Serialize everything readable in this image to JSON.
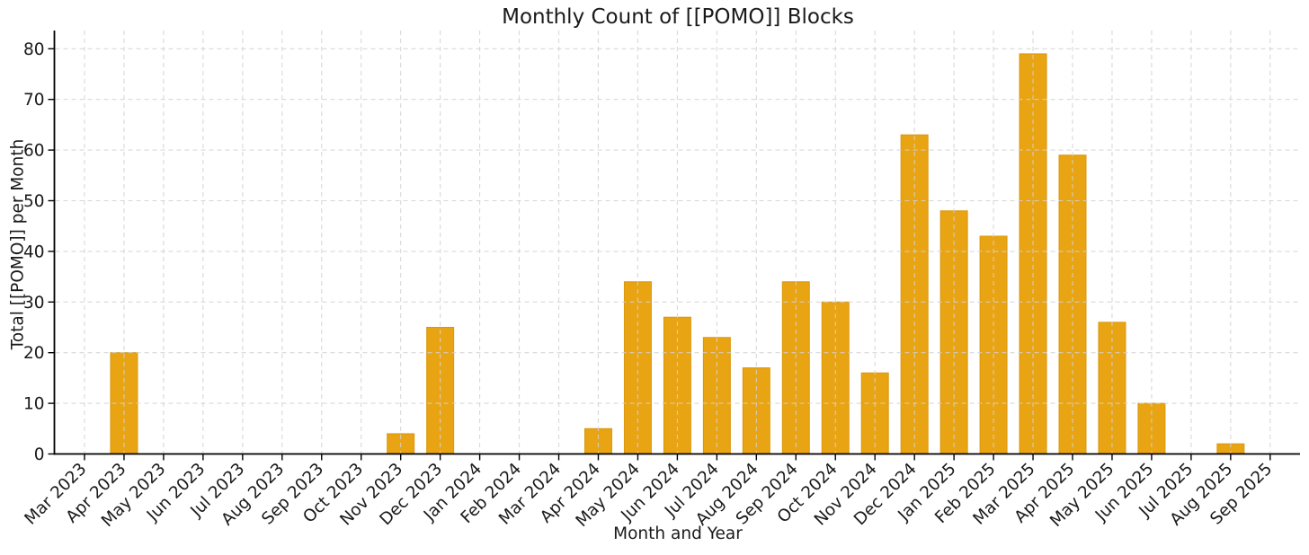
{
  "chart_data": {
    "type": "bar",
    "title": "Monthly Count of [[POMO]] Blocks",
    "xlabel": "Month and Year",
    "ylabel": "Total [[POMO]] per Month",
    "categories": [
      "Mar 2023",
      "Apr 2023",
      "May 2023",
      "Jun 2023",
      "Jul 2023",
      "Aug 2023",
      "Sep 2023",
      "Oct 2023",
      "Nov 2023",
      "Dec 2023",
      "Jan 2024",
      "Feb 2024",
      "Mar 2024",
      "Apr 2024",
      "May 2024",
      "Jun 2024",
      "Jul 2024",
      "Aug 2024",
      "Sep 2024",
      "Oct 2024",
      "Nov 2024",
      "Dec 2024",
      "Jan 2025",
      "Feb 2025",
      "Mar 2025",
      "Apr 2025",
      "May 2025",
      "Jun 2025",
      "Jul 2025",
      "Aug 2025",
      "Sep 2025"
    ],
    "values": [
      0,
      20,
      0,
      0,
      0,
      0,
      0,
      0,
      4,
      25,
      0,
      0,
      0,
      5,
      34,
      27,
      23,
      17,
      34,
      30,
      16,
      63,
      48,
      43,
      79,
      59,
      26,
      10,
      0,
      2,
      0
    ],
    "ylim": [
      0,
      80
    ],
    "yticks": [
      0,
      10,
      20,
      30,
      40,
      50,
      60,
      70,
      80
    ],
    "grid": true,
    "legend_position": "none",
    "bar_color": "#E9A413",
    "bar_edge_color": "#DA970E",
    "grid_color": "#D2D2D2",
    "axis_color": "#000000",
    "text_color": "#1A1A1A",
    "background_color": "#FFFFFF"
  }
}
